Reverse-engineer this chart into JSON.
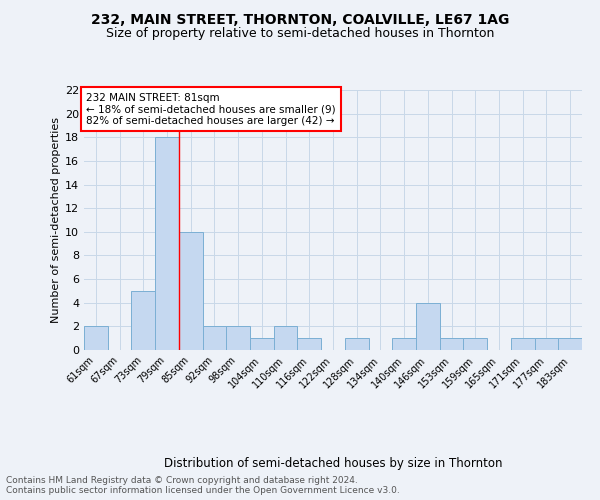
{
  "title1": "232, MAIN STREET, THORNTON, COALVILLE, LE67 1AG",
  "title2": "Size of property relative to semi-detached houses in Thornton",
  "xlabel": "Distribution of semi-detached houses by size in Thornton",
  "ylabel": "Number of semi-detached properties",
  "categories": [
    "61sqm",
    "67sqm",
    "73sqm",
    "79sqm",
    "85sqm",
    "92sqm",
    "98sqm",
    "104sqm",
    "110sqm",
    "116sqm",
    "122sqm",
    "128sqm",
    "134sqm",
    "140sqm",
    "146sqm",
    "153sqm",
    "159sqm",
    "165sqm",
    "171sqm",
    "177sqm",
    "183sqm"
  ],
  "values": [
    2,
    0,
    5,
    18,
    10,
    2,
    2,
    1,
    2,
    1,
    0,
    1,
    0,
    1,
    4,
    1,
    1,
    0,
    1,
    1,
    1
  ],
  "bar_color": "#c5d8f0",
  "bar_edge_color": "#7bafd4",
  "grid_color": "#c8d8e8",
  "annotation_text": "232 MAIN STREET: 81sqm\n← 18% of semi-detached houses are smaller (9)\n82% of semi-detached houses are larger (42) →",
  "annotation_box_color": "white",
  "annotation_box_edge": "red",
  "redline_x": 3.5,
  "ylim": [
    0,
    22
  ],
  "yticks": [
    0,
    2,
    4,
    6,
    8,
    10,
    12,
    14,
    16,
    18,
    20,
    22
  ],
  "footer": "Contains HM Land Registry data © Crown copyright and database right 2024.\nContains public sector information licensed under the Open Government Licence v3.0.",
  "title1_fontsize": 10,
  "title2_fontsize": 9,
  "xlabel_fontsize": 8.5,
  "ylabel_fontsize": 8,
  "footer_fontsize": 6.5,
  "bg_color": "#eef2f8"
}
